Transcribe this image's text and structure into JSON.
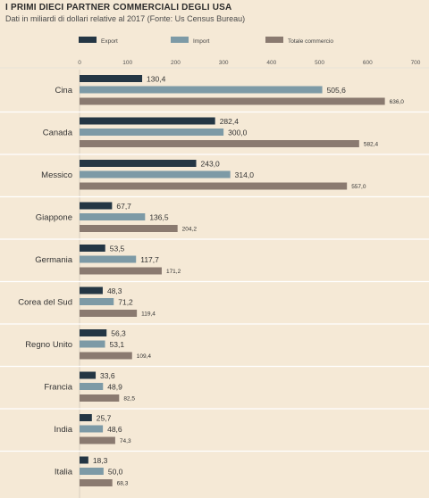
{
  "title": "I PRIMI DIECI PARTNER COMMERCIALI DEGLI USA",
  "subtitle": "Dati in miliardi di dollari relative al 2017 (Fonte: Us Census Bureau)",
  "chart_data": {
    "type": "bar",
    "orientation": "horizontal",
    "xlim": [
      0,
      700
    ],
    "ticks": [
      0,
      100,
      200,
      300,
      400,
      500,
      600,
      700
    ],
    "tick_labels": [
      "0",
      "100",
      "200",
      "300",
      "400",
      "500",
      "600",
      "700"
    ],
    "legend_position": "top",
    "grid": true,
    "categories": [
      "Cina",
      "Canada",
      "Messico",
      "Giappone",
      "Germania",
      "Corea del Sud",
      "Regno Unito",
      "Francia",
      "India",
      "Italia"
    ],
    "series": [
      {
        "name": "Export",
        "color": "#243644",
        "values": [
          130.4,
          282.4,
          243.0,
          67.7,
          53.5,
          48.3,
          56.3,
          33.6,
          25.7,
          18.3
        ],
        "labels": [
          "130,4",
          "282,4",
          "243,0",
          "67,7",
          "53,5",
          "48,3",
          "56,3",
          "33,6",
          "25,7",
          "18,3"
        ]
      },
      {
        "name": "Import",
        "color": "#7d9aa6",
        "values": [
          505.6,
          300.0,
          314.0,
          136.5,
          117.7,
          71.2,
          53.1,
          48.9,
          48.6,
          50.0
        ],
        "labels": [
          "505,6",
          "300,0",
          "314,0",
          "136,5",
          "117,7",
          "71,2",
          "53,1",
          "48,9",
          "48,6",
          "50,0"
        ]
      },
      {
        "name": "Totale commercio",
        "color": "#8a7a70",
        "values": [
          636.0,
          582.4,
          557.0,
          204.2,
          171.2,
          119.4,
          109.4,
          82.5,
          74.3,
          68.3
        ],
        "labels": [
          "636,0",
          "582,4",
          "557,0",
          "204,2",
          "171,2",
          "119,4",
          "109,4",
          "82,5",
          "74,3",
          "68,3"
        ]
      }
    ]
  }
}
